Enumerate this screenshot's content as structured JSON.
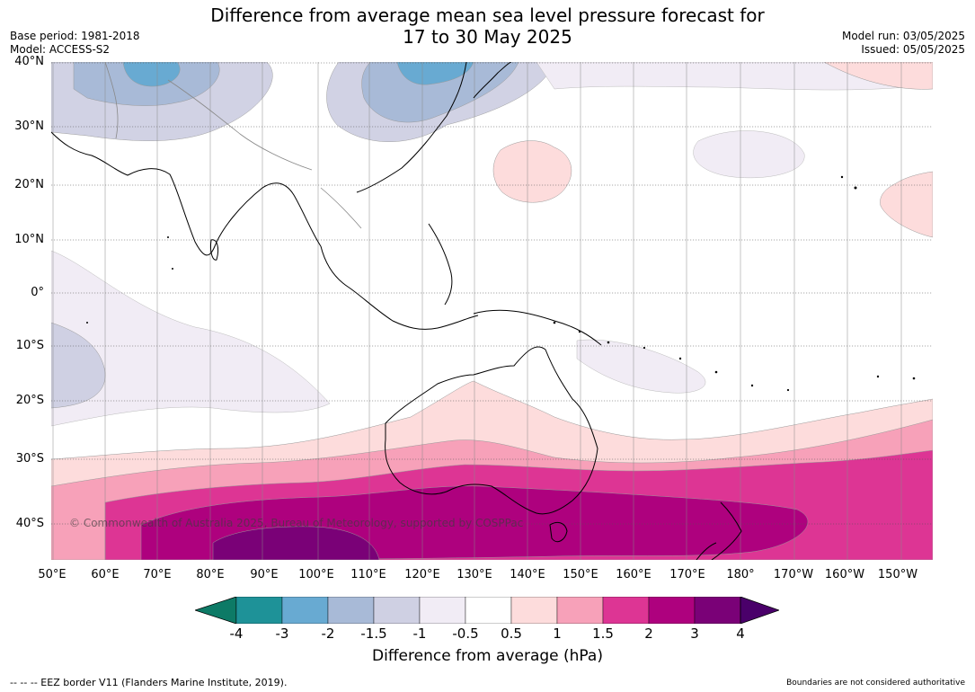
{
  "title": {
    "line1": "Difference from average mean sea level pressure forecast for",
    "line2": "17 to 30 May 2025"
  },
  "meta_left": {
    "base_period": "Base period: 1981-2018",
    "model": "Model: ACCESS-S2"
  },
  "meta_right": {
    "model_run": "Model run: 03/05/2025",
    "issued": "Issued: 05/05/2025"
  },
  "map": {
    "region": "Indo-Pacific and Australia",
    "lat_labels": [
      "40°N",
      "30°N",
      "20°N",
      "10°N",
      "0°",
      "10°S",
      "20°S",
      "30°S",
      "40°S"
    ],
    "lon_labels": [
      "50°E",
      "60°E",
      "70°E",
      "80°E",
      "90°E",
      "100°E",
      "110°E",
      "120°E",
      "130°E",
      "140°E",
      "150°E",
      "160°E",
      "170°E",
      "180°",
      "170°W",
      "160°W",
      "150°W"
    ],
    "copyright": "© Commonwealth of Australia 2025, Bureau of Meteorology, supported by COSPPac"
  },
  "colorbar": {
    "title": "Difference from average (hPa)",
    "ticks": [
      "-4",
      "-3",
      "-2",
      "-1.5",
      "-1",
      "-0.5",
      "0.5",
      "1",
      "1.5",
      "2",
      "3",
      "4"
    ],
    "colors": [
      "#0d7a66",
      "#1e9298",
      "#68aad2",
      "#a8bad7",
      "#cfd0e3",
      "#f1ecf5",
      "#ffffff",
      "#fddcdc",
      "#f7a1b9",
      "#dd3594",
      "#ae017e",
      "#7a0177",
      "#4a006a"
    ]
  },
  "footer": {
    "left": "--  --  -- EEZ border V11 (Flanders Marine Institute, 2019).",
    "right": "Boundaries are not considered authoritative"
  }
}
